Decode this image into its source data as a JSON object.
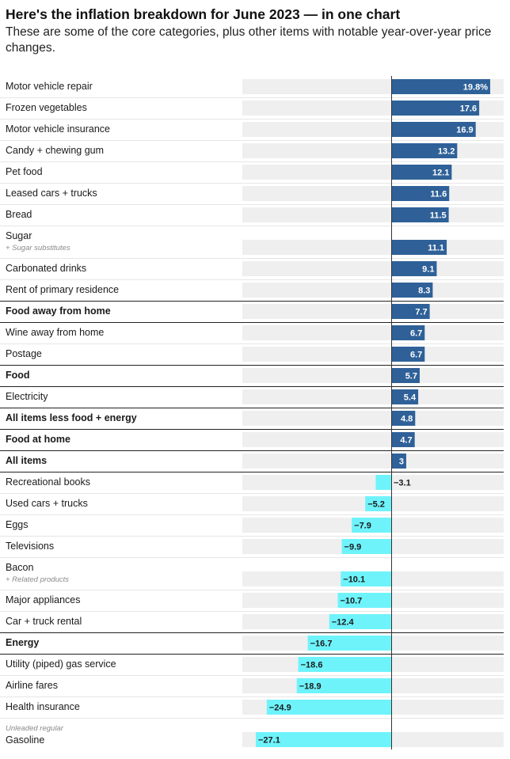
{
  "title": "Here's the inflation breakdown for June 2023 — in one chart",
  "subtitle": "These are some of the core categories, plus other items with notable year-over-year price changes.",
  "colors": {
    "positive": "#2f6198",
    "negative": "#6ef3fb",
    "track": "#efefef",
    "axis": "#333333"
  },
  "chart_data": {
    "type": "bar",
    "orientation": "horizontal",
    "xlim": [
      -27.1,
      19.8
    ],
    "categories": [
      {
        "label": "Motor vehicle repair",
        "value": 19.8,
        "value_label": "19.8%",
        "bold": false
      },
      {
        "label": "Frozen vegetables",
        "value": 17.6,
        "value_label": "17.6",
        "bold": false
      },
      {
        "label": "Motor vehicle insurance",
        "value": 16.9,
        "value_label": "16.9",
        "bold": false
      },
      {
        "label": "Candy + chewing gum",
        "value": 13.2,
        "value_label": "13.2",
        "bold": false
      },
      {
        "label": "Pet food",
        "value": 12.1,
        "value_label": "12.1",
        "bold": false
      },
      {
        "label": "Leased cars + trucks",
        "value": 11.6,
        "value_label": "11.6",
        "bold": false
      },
      {
        "label": "Bread",
        "value": 11.5,
        "value_label": "11.5",
        "bold": false
      },
      {
        "label": "Sugar",
        "sublabel": "+ Sugar substitutes",
        "value": 11.1,
        "value_label": "11.1",
        "bold": false
      },
      {
        "label": "Carbonated drinks",
        "value": 9.1,
        "value_label": "9.1",
        "bold": false
      },
      {
        "label": "Rent of primary residence",
        "value": 8.3,
        "value_label": "8.3",
        "bold": false
      },
      {
        "label": "Food away from home",
        "value": 7.7,
        "value_label": "7.7",
        "bold": true
      },
      {
        "label": "Wine away from home",
        "value": 6.7,
        "value_label": "6.7",
        "bold": false
      },
      {
        "label": "Postage",
        "value": 6.7,
        "value_label": "6.7",
        "bold": false
      },
      {
        "label": "Food",
        "value": 5.7,
        "value_label": "5.7",
        "bold": true
      },
      {
        "label": "Electricity",
        "value": 5.4,
        "value_label": "5.4",
        "bold": false
      },
      {
        "label": "All items less food + energy",
        "value": 4.8,
        "value_label": "4.8",
        "bold": true
      },
      {
        "label": "Food at home",
        "value": 4.7,
        "value_label": "4.7",
        "bold": true
      },
      {
        "label": "All items",
        "value": 3,
        "value_label": "3",
        "bold": true
      },
      {
        "label": "Recreational books",
        "value": -3.1,
        "value_label": "−3.1",
        "bold": false
      },
      {
        "label": "Used cars + trucks",
        "value": -5.2,
        "value_label": "−5.2",
        "bold": false
      },
      {
        "label": "Eggs",
        "value": -7.9,
        "value_label": "−7.9",
        "bold": false
      },
      {
        "label": "Televisions",
        "value": -9.9,
        "value_label": "−9.9",
        "bold": false
      },
      {
        "label": "Bacon",
        "sublabel": "+ Related products",
        "value": -10.1,
        "value_label": "−10.1",
        "bold": false
      },
      {
        "label": "Major appliances",
        "value": -10.7,
        "value_label": "−10.7",
        "bold": false
      },
      {
        "label": "Car + truck rental",
        "value": -12.4,
        "value_label": "−12.4",
        "bold": false
      },
      {
        "label": "Energy",
        "value": -16.7,
        "value_label": "−16.7",
        "bold": true
      },
      {
        "label": "Utility (piped) gas service",
        "value": -18.6,
        "value_label": "−18.6",
        "bold": false
      },
      {
        "label": "Airline fares",
        "value": -18.9,
        "value_label": "−18.9",
        "bold": false
      },
      {
        "label": "Health insurance",
        "value": -24.9,
        "value_label": "−24.9",
        "bold": false
      },
      {
        "label": "Gasoline",
        "prelabel": "Unleaded regular",
        "value": -27.1,
        "value_label": "−27.1",
        "bold": false
      }
    ]
  }
}
